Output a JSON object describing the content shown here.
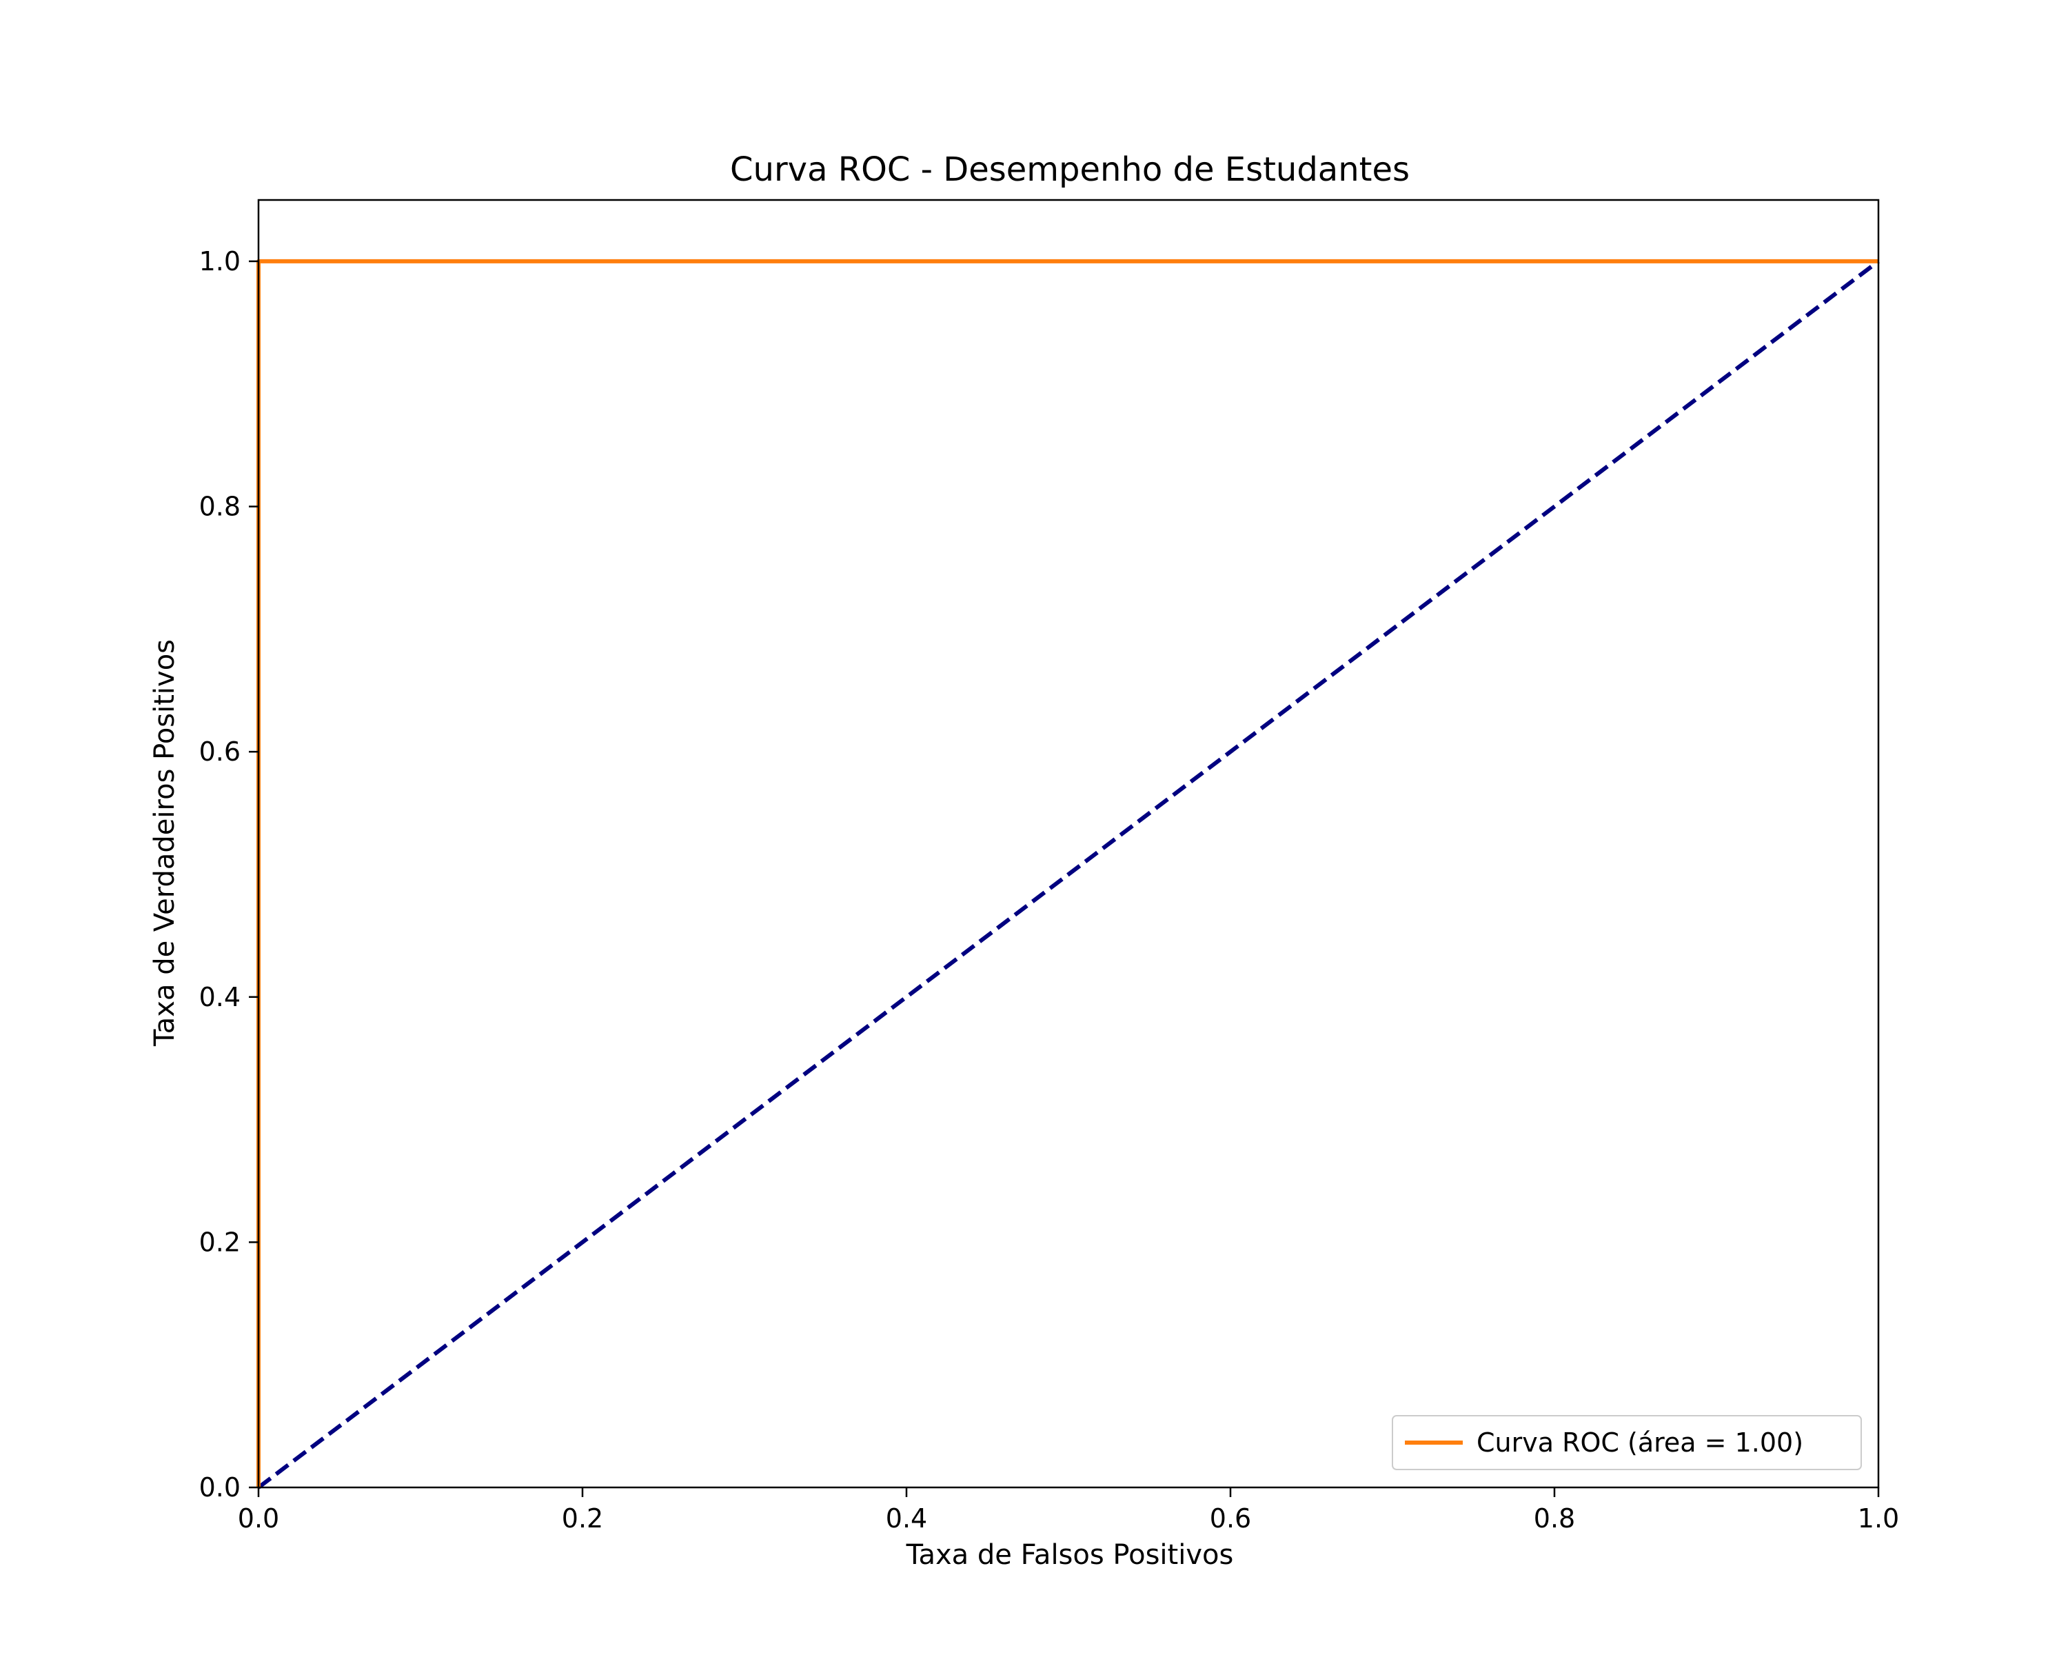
{
  "chart_data": {
    "type": "line",
    "title": "Curva ROC - Desempenho de Estudantes",
    "xlabel": "Taxa de Falsos Positivos",
    "ylabel": "Taxa de Verdadeiros Positivos",
    "xlim": [
      0.0,
      1.0
    ],
    "ylim": [
      0.0,
      1.05
    ],
    "x_ticks": [
      "0.0",
      "0.2",
      "0.4",
      "0.6",
      "0.8",
      "1.0"
    ],
    "y_ticks": [
      "0.0",
      "0.2",
      "0.4",
      "0.6",
      "0.8",
      "1.0"
    ],
    "grid": false,
    "legend_position": "lower-right",
    "series": [
      {
        "name": "Curva ROC (área = 1.00)",
        "color": "#ff7f0e",
        "style": "solid",
        "x": [
          0.0,
          0.0,
          1.0
        ],
        "y": [
          0.0,
          1.0,
          1.0
        ]
      },
      {
        "color": "#000080",
        "style": "dashed",
        "x": [
          0.0,
          1.0
        ],
        "y": [
          0.0,
          1.0
        ]
      }
    ]
  }
}
